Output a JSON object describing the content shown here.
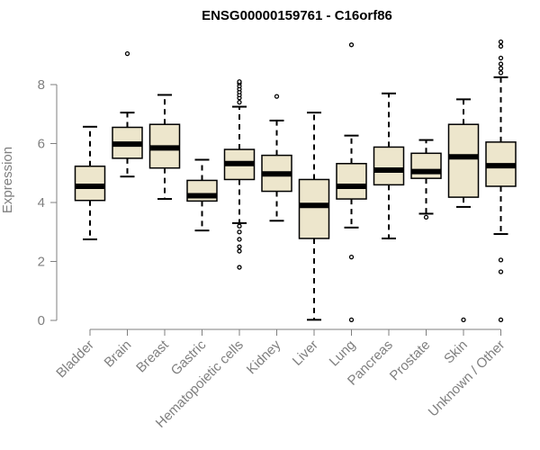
{
  "chart_data": {
    "type": "boxplot",
    "title": "ENSG00000159761 - C16orf86",
    "xlabel": "",
    "ylabel": "Expression",
    "ylim": [
      0,
      9.6
    ],
    "yticks": [
      0,
      2,
      4,
      6,
      8
    ],
    "grid": false,
    "colors": {
      "box_fill": "#ede6cc",
      "box_stroke": "#000000",
      "axis": "#7f7f7f"
    },
    "categories": [
      "Bladder",
      "Brain",
      "Breast",
      "Gastric",
      "Hematopoietic cells",
      "Kidney",
      "Liver",
      "Lung",
      "Pancreas",
      "Prostate",
      "Skin",
      "Unknown / Other"
    ],
    "boxes": [
      {
        "min": 2.75,
        "q1": 4.07,
        "median": 4.55,
        "q3": 5.23,
        "max": 6.57,
        "outliers": []
      },
      {
        "min": 4.88,
        "q1": 5.5,
        "median": 5.98,
        "q3": 6.55,
        "max": 7.05,
        "outliers": [
          9.05
        ]
      },
      {
        "min": 4.12,
        "q1": 5.17,
        "median": 5.85,
        "q3": 6.65,
        "max": 7.65,
        "outliers": []
      },
      {
        "min": 3.05,
        "q1": 4.05,
        "median": 4.23,
        "q3": 4.75,
        "max": 5.45,
        "outliers": []
      },
      {
        "min": 3.3,
        "q1": 4.78,
        "median": 5.32,
        "q3": 5.8,
        "max": 7.25,
        "outliers": [
          7.4,
          7.55,
          7.65,
          7.75,
          7.85,
          7.95,
          8.05,
          8.1,
          3.2,
          3.0,
          2.75,
          2.5,
          2.35,
          1.8
        ]
      },
      {
        "min": 3.38,
        "q1": 4.38,
        "median": 4.97,
        "q3": 5.6,
        "max": 6.78,
        "outliers": [
          7.6
        ]
      },
      {
        "min": 0.02,
        "q1": 2.78,
        "median": 3.9,
        "q3": 4.78,
        "max": 7.05,
        "outliers": []
      },
      {
        "min": 3.15,
        "q1": 4.12,
        "median": 4.55,
        "q3": 5.32,
        "max": 6.27,
        "outliers": [
          9.35,
          2.15,
          0.02
        ]
      },
      {
        "min": 2.78,
        "q1": 4.6,
        "median": 5.1,
        "q3": 5.88,
        "max": 7.7,
        "outliers": []
      },
      {
        "min": 3.62,
        "q1": 4.82,
        "median": 5.05,
        "q3": 5.67,
        "max": 6.12,
        "outliers": [
          3.5
        ]
      },
      {
        "min": 3.85,
        "q1": 4.18,
        "median": 5.55,
        "q3": 6.65,
        "max": 7.5,
        "outliers": [
          0.02
        ]
      },
      {
        "min": 2.93,
        "q1": 4.55,
        "median": 5.25,
        "q3": 6.05,
        "max": 8.25,
        "outliers": [
          8.4,
          8.55,
          8.7,
          8.9,
          9.3,
          9.45,
          2.05,
          1.65,
          0.02
        ]
      }
    ]
  }
}
